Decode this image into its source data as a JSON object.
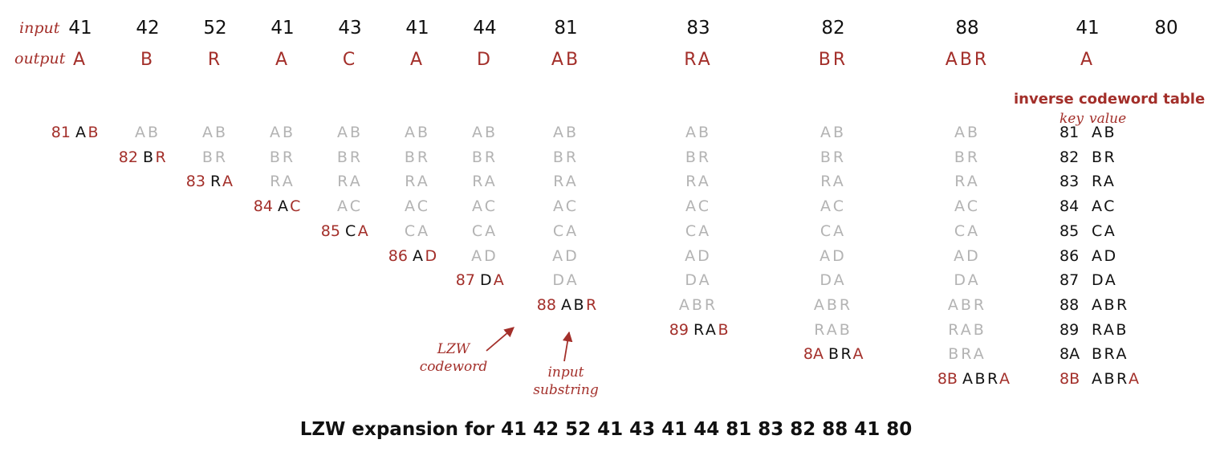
{
  "labels": {
    "input": "input",
    "output": "output"
  },
  "steps": [
    {
      "in": "41",
      "out": "A"
    },
    {
      "in": "42",
      "out": "B"
    },
    {
      "in": "52",
      "out": "R"
    },
    {
      "in": "41",
      "out": "A"
    },
    {
      "in": "43",
      "out": "C"
    },
    {
      "in": "41",
      "out": "A"
    },
    {
      "in": "44",
      "out": "D"
    },
    {
      "in": "81",
      "out": "AB"
    },
    {
      "in": "83",
      "out": "RA"
    },
    {
      "in": "82",
      "out": "BR"
    },
    {
      "in": "88",
      "out": "ABR"
    },
    {
      "in": "41",
      "out": "A"
    },
    {
      "in": "80",
      "out": ""
    }
  ],
  "entries": [
    {
      "key": "81",
      "prefix": "A",
      "next": "B",
      "value": "AB",
      "col": 0
    },
    {
      "key": "82",
      "prefix": "B",
      "next": "R",
      "value": "BR",
      "col": 1
    },
    {
      "key": "83",
      "prefix": "R",
      "next": "A",
      "value": "RA",
      "col": 2
    },
    {
      "key": "84",
      "prefix": "A",
      "next": "C",
      "value": "AC",
      "col": 3
    },
    {
      "key": "85",
      "prefix": "C",
      "next": "A",
      "value": "CA",
      "col": 4
    },
    {
      "key": "86",
      "prefix": "A",
      "next": "D",
      "value": "AD",
      "col": 5
    },
    {
      "key": "87",
      "prefix": "D",
      "next": "A",
      "value": "DA",
      "col": 6
    },
    {
      "key": "88",
      "prefix": "AB",
      "next": "R",
      "value": "ABR",
      "col": 7
    },
    {
      "key": "89",
      "prefix": "RA",
      "next": "B",
      "value": "RAB",
      "col": 8
    },
    {
      "key": "8A",
      "prefix": "BR",
      "next": "A",
      "value": "BRA",
      "col": 9
    },
    {
      "key": "8B",
      "prefix": "ABR",
      "next": "A",
      "value": "ABRA",
      "col": 10
    }
  ],
  "table": {
    "title": "inverse codeword table",
    "key_label": "key",
    "value_label": "value"
  },
  "annotations": {
    "codeword": [
      "LZW",
      "codeword"
    ],
    "substring": [
      "input",
      "substring"
    ]
  },
  "caption": "LZW expansion for  41  42  52  41  43  41  44  81  83  82  88  41  80",
  "colors": {
    "accent": "#a32f2a",
    "text": "#111111",
    "faded": "#b3b3b3"
  }
}
